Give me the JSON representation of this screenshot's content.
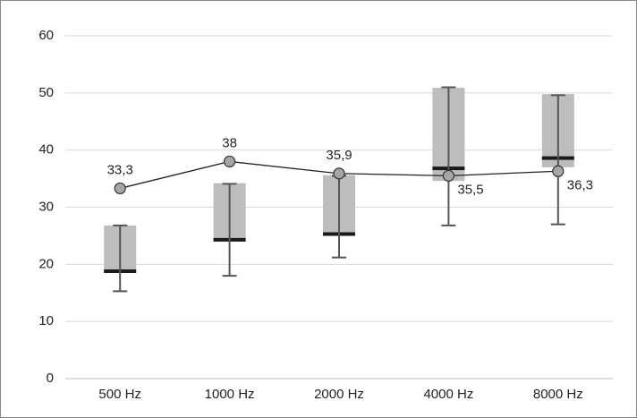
{
  "chart_data": {
    "type": "box",
    "categories": [
      "500 Hz",
      "1000 Hz",
      "2000 Hz",
      "4000 Hz",
      "8000 Hz"
    ],
    "box": {
      "color": "#bdbdbd",
      "median_color": "#1a1a1a",
      "whisker_color": "#555555",
      "min": [
        15.3,
        18,
        21.2,
        26.8,
        27
      ],
      "q1": [
        18.7,
        24,
        25.2,
        34.6,
        37
      ],
      "median": [
        18.8,
        24.3,
        25.3,
        36.8,
        38.6
      ],
      "q3": [
        26.8,
        34.2,
        35.6,
        50.9,
        49.8
      ],
      "max": [
        26.8,
        34.1,
        35.5,
        51,
        49.6
      ]
    },
    "line": {
      "color": "#222222",
      "marker_color": "#a6a6a6",
      "values": [
        33.3,
        38,
        35.9,
        35.5,
        36.3
      ],
      "value_labels": [
        "33,3",
        "38",
        "35,9",
        "35,5",
        "36,3"
      ]
    },
    "ylim": [
      0,
      60
    ],
    "yticks": [
      0,
      10,
      20,
      30,
      40,
      50,
      60
    ],
    "grid": true
  }
}
